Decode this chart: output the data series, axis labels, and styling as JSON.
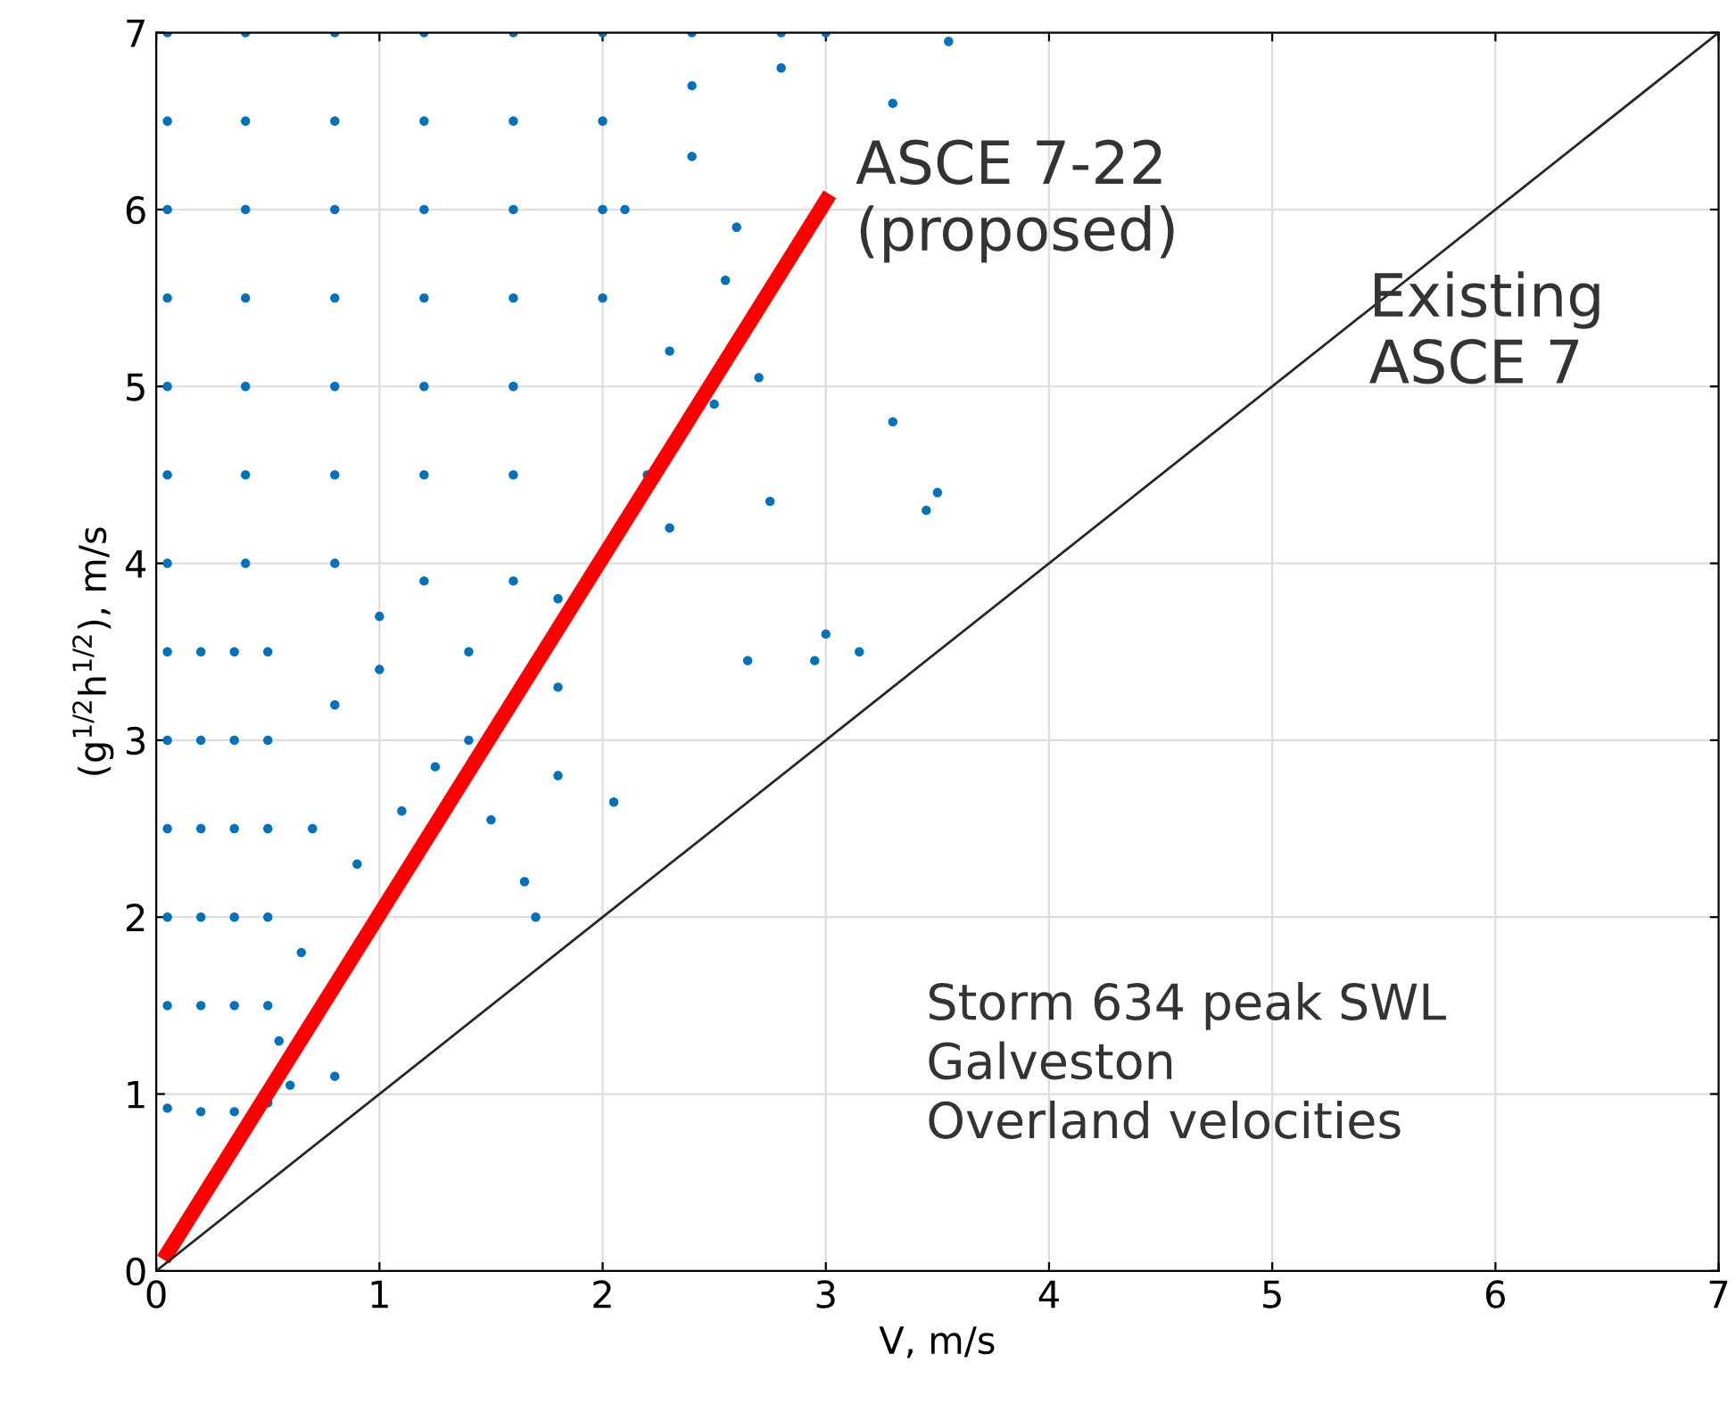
{
  "chart_data": {
    "type": "scatter",
    "xlabel": "V, m/s",
    "ylabel": "(g$^{1/2}$h$^{1/2}$), m/s",
    "xlim": [
      0,
      7
    ],
    "ylim": [
      0,
      7
    ],
    "xticks": [
      0,
      1,
      2,
      3,
      4,
      5,
      6,
      7
    ],
    "yticks": [
      0,
      1,
      2,
      3,
      4,
      5,
      6,
      7
    ],
    "grid": true,
    "series": [
      {
        "marker": "circle",
        "color": "#0072bd",
        "x": [
          0.05,
          0.2,
          0.35,
          0.5,
          0.6,
          0.05,
          0.2,
          0.35,
          0.5,
          0.05,
          0.2,
          0.35,
          0.5,
          0.05,
          0.2,
          0.35,
          0.5,
          0.05,
          0.2,
          0.35,
          0.5,
          0.05,
          0.2,
          0.35,
          0.5,
          0.65,
          0.7,
          0.8,
          0.05,
          0.4,
          0.8,
          1.2,
          1.6,
          0.05,
          0.4,
          0.8,
          1.2,
          1.6,
          0.05,
          0.4,
          0.8,
          1.2,
          1.6,
          0.05,
          0.4,
          0.8,
          1.2,
          1.6,
          0.05,
          0.4,
          0.8,
          1.2,
          1.6,
          0.05,
          0.4,
          0.8,
          1.2,
          1.6,
          0.05,
          0.4,
          0.8,
          1.2,
          1.6,
          2.0,
          2.0,
          2.0,
          2.0,
          2.4,
          2.4,
          2.4,
          2.8,
          2.8,
          3.0,
          1.0,
          1.4,
          1.8,
          2.3,
          1.0,
          1.4,
          1.8,
          2.2,
          2.5,
          2.3,
          2.7,
          2.55,
          2.1,
          3.55,
          3.3,
          2.6,
          3.3,
          3.45,
          3.5,
          2.75,
          3.0,
          3.15,
          2.95,
          2.65,
          1.7,
          1.65,
          2.05,
          1.8,
          0.8,
          0.55,
          1.25,
          1.5,
          0.9,
          1.1
        ],
        "values": [
          0.92,
          0.9,
          0.9,
          0.95,
          1.05,
          1.5,
          1.5,
          1.5,
          1.5,
          2.0,
          2.0,
          2.0,
          2.0,
          2.5,
          2.5,
          2.5,
          2.5,
          3.0,
          3.0,
          3.0,
          3.0,
          3.5,
          3.5,
          3.5,
          3.5,
          1.8,
          2.5,
          3.2,
          4.0,
          4.0,
          4.0,
          3.9,
          3.9,
          4.5,
          4.5,
          4.5,
          4.5,
          4.5,
          5.0,
          5.0,
          5.0,
          5.0,
          5.0,
          5.5,
          5.5,
          5.5,
          5.5,
          5.5,
          6.0,
          6.0,
          6.0,
          6.0,
          6.0,
          6.5,
          6.5,
          6.5,
          6.5,
          6.5,
          7.0,
          7.0,
          7.0,
          7.0,
          7.0,
          5.5,
          6.0,
          6.5,
          7.0,
          6.3,
          6.7,
          7.0,
          6.8,
          7.0,
          7.0,
          3.7,
          3.5,
          3.8,
          4.2,
          3.4,
          3.0,
          3.3,
          4.5,
          4.9,
          5.2,
          5.05,
          5.6,
          6.0,
          6.95,
          6.6,
          5.9,
          4.8,
          4.3,
          4.4,
          4.35,
          3.6,
          3.5,
          3.45,
          3.45,
          2.0,
          2.2,
          2.65,
          2.8,
          1.1,
          1.3,
          2.85,
          2.55,
          2.3,
          2.6
        ]
      },
      {
        "type": "line",
        "marker": "none",
        "color": "#ff0000",
        "x": [
          0.05,
          3
        ],
        "values": [
          0.1,
          6.05
        ]
      },
      {
        "type": "line",
        "marker": "none",
        "color": "#262626",
        "x": [
          0,
          7
        ],
        "values": [
          0,
          7
        ]
      }
    ],
    "annotations": [
      {
        "text": "ASCE 7-22\n(proposed)",
        "x": 3.0,
        "y": 6.05
      },
      {
        "text": "Existing\nASCE 7",
        "x": 5.3,
        "y": 5.3
      },
      "Storm 634 peak SWL\nGalveston\nOverland velocities"
    ]
  }
}
